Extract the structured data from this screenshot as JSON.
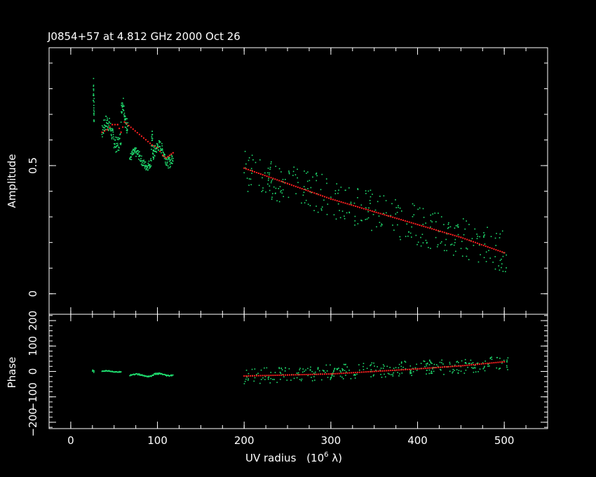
{
  "chart_data": {
    "type": "scatter",
    "title": "J0854+57 at 4.812 GHz 2000 Oct 26",
    "xlabel": "UV radius",
    "xlabel_unit": "(10",
    "xlabel_exp": "6",
    "xlabel_lambda": " λ)",
    "xlim": [
      -25,
      550
    ],
    "xticks": [
      "0",
      "100",
      "200",
      "300",
      "400",
      "500"
    ],
    "colors": {
      "observed": "#20e070",
      "model": "#ff2020",
      "axes": "#ffffff",
      "background": "#000000"
    },
    "panels": [
      {
        "name": "amplitude",
        "ylabel": "Amplitude",
        "ylim": [
          -0.08,
          0.96
        ],
        "yticks": [
          "0",
          "0.5"
        ],
        "series": [
          {
            "role": "observed",
            "groups": [
              {
                "x_range": [
                  26,
                  27
                ],
                "y_range": [
                  0.66,
                  0.85
                ],
                "n": 25
              },
              {
                "x_range": [
                  36,
                  58
                ],
                "y_range": [
                  0.55,
                  0.7
                ],
                "n": 90
              },
              {
                "x_range": [
                  58,
                  66
                ],
                "y_range": [
                  0.62,
                  0.78
                ],
                "n": 40
              },
              {
                "x_range": [
                  68,
                  93
                ],
                "y_range": [
                  0.48,
                  0.57
                ],
                "n": 90
              },
              {
                "x_range": [
                  93,
                  96
                ],
                "y_range": [
                  0.51,
                  0.64
                ],
                "n": 25
              },
              {
                "x_range": [
                  96,
                  118
                ],
                "y_range": [
                  0.49,
                  0.6
                ],
                "n": 90
              },
              {
                "x_range": [
                  200,
                  505
                ],
                "trend": [
                  0.48,
                  0.16
                ],
                "scatter": 0.08,
                "n": 320
              }
            ]
          },
          {
            "role": "model",
            "points": [
              [
                36,
                0.63
              ],
              [
                42,
                0.64
              ],
              [
                48,
                0.66
              ],
              [
                54,
                0.66
              ],
              [
                58,
                0.63
              ],
              [
                62,
                0.67
              ],
              [
                94,
                0.58
              ],
              [
                100,
                0.57
              ],
              [
                106,
                0.54
              ],
              [
                110,
                0.53
              ],
              [
                114,
                0.54
              ],
              [
                118,
                0.55
              ],
              [
                200,
                0.49
              ],
              [
                250,
                0.43
              ],
              [
                300,
                0.37
              ],
              [
                350,
                0.32
              ],
              [
                400,
                0.27
              ],
              [
                450,
                0.22
              ],
              [
                500,
                0.16
              ]
            ]
          }
        ]
      },
      {
        "name": "phase",
        "ylabel": "Phase",
        "ylim": [
          -225,
          225
        ],
        "yticks": [
          "−200",
          "−100",
          "0",
          "100",
          "200"
        ],
        "series": [
          {
            "role": "observed",
            "groups": [
              {
                "x_range": [
                  25,
                  27
                ],
                "y_range": [
                  -4,
                  6
                ],
                "n": 6
              },
              {
                "x_range": [
                  36,
                  58
                ],
                "y_range": [
                  -4,
                  4
                ],
                "n": 45
              },
              {
                "x_range": [
                  68,
                  95
                ],
                "y_range": [
                  -22,
                  -8
                ],
                "n": 45
              },
              {
                "x_range": [
                  95,
                  118
                ],
                "y_range": [
                  -20,
                  -6
                ],
                "n": 45
              },
              {
                "x_range": [
                  200,
                  505
                ],
                "trend": [
                  -20,
                  30
                ],
                "scatter": 30,
                "n": 320
              }
            ]
          },
          {
            "role": "model",
            "points": [
              [
                200,
                -18
              ],
              [
                250,
                -14
              ],
              [
                300,
                -10
              ],
              [
                350,
                0
              ],
              [
                400,
                10
              ],
              [
                450,
                22
              ],
              [
                500,
                38
              ]
            ]
          }
        ]
      }
    ]
  }
}
